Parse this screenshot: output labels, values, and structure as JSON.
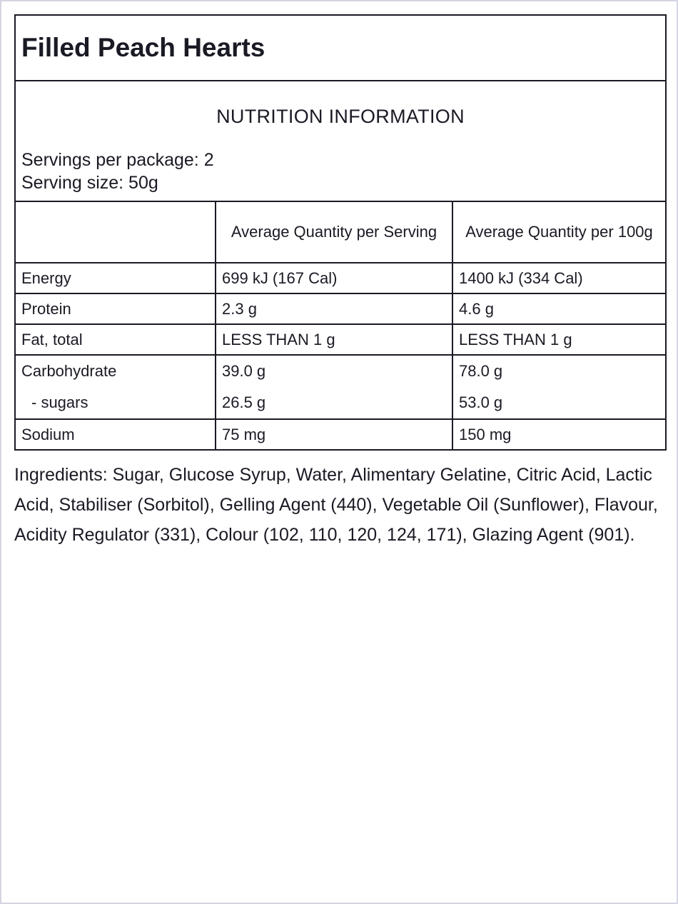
{
  "product_name": "Filled Peach Hearts",
  "nutrition": {
    "heading": "NUTRITION INFORMATION",
    "servings_per_package": "Servings per package: 2",
    "serving_size": "Serving size: 50g",
    "columns": [
      "",
      "Average Quantity per Serving",
      "Average Quantity per 100g"
    ],
    "rows": [
      {
        "name": "Energy",
        "per_serving": "699 kJ (167 Cal)",
        "per_100g": "1400 kJ (334 Cal)"
      },
      {
        "name": "Protein",
        "per_serving": "2.3 g",
        "per_100g": "4.6 g"
      },
      {
        "name": "Fat, total",
        "per_serving": "LESS THAN 1 g",
        "per_100g": "LESS THAN 1 g"
      },
      {
        "name": "Carbohydrate",
        "per_serving": "39.0 g",
        "per_100g": "78.0 g",
        "sub_name": "- sugars",
        "sub_per_serving": "26.5 g",
        "sub_per_100g": "53.0 g"
      },
      {
        "name": "Sodium",
        "per_serving": "75 mg",
        "per_100g": "150 mg"
      }
    ]
  },
  "ingredients": "Ingredients: Sugar, Glucose Syrup, Water, Alimentary Gelatine, Citric Acid, Lactic Acid, Stabiliser (Sorbitol), Gelling Agent (440), Vegetable Oil (Sunflower), Flavour, Acidity Regulator (331), Colour (102, 110, 120, 124, 171), Glazing Agent (901)."
}
